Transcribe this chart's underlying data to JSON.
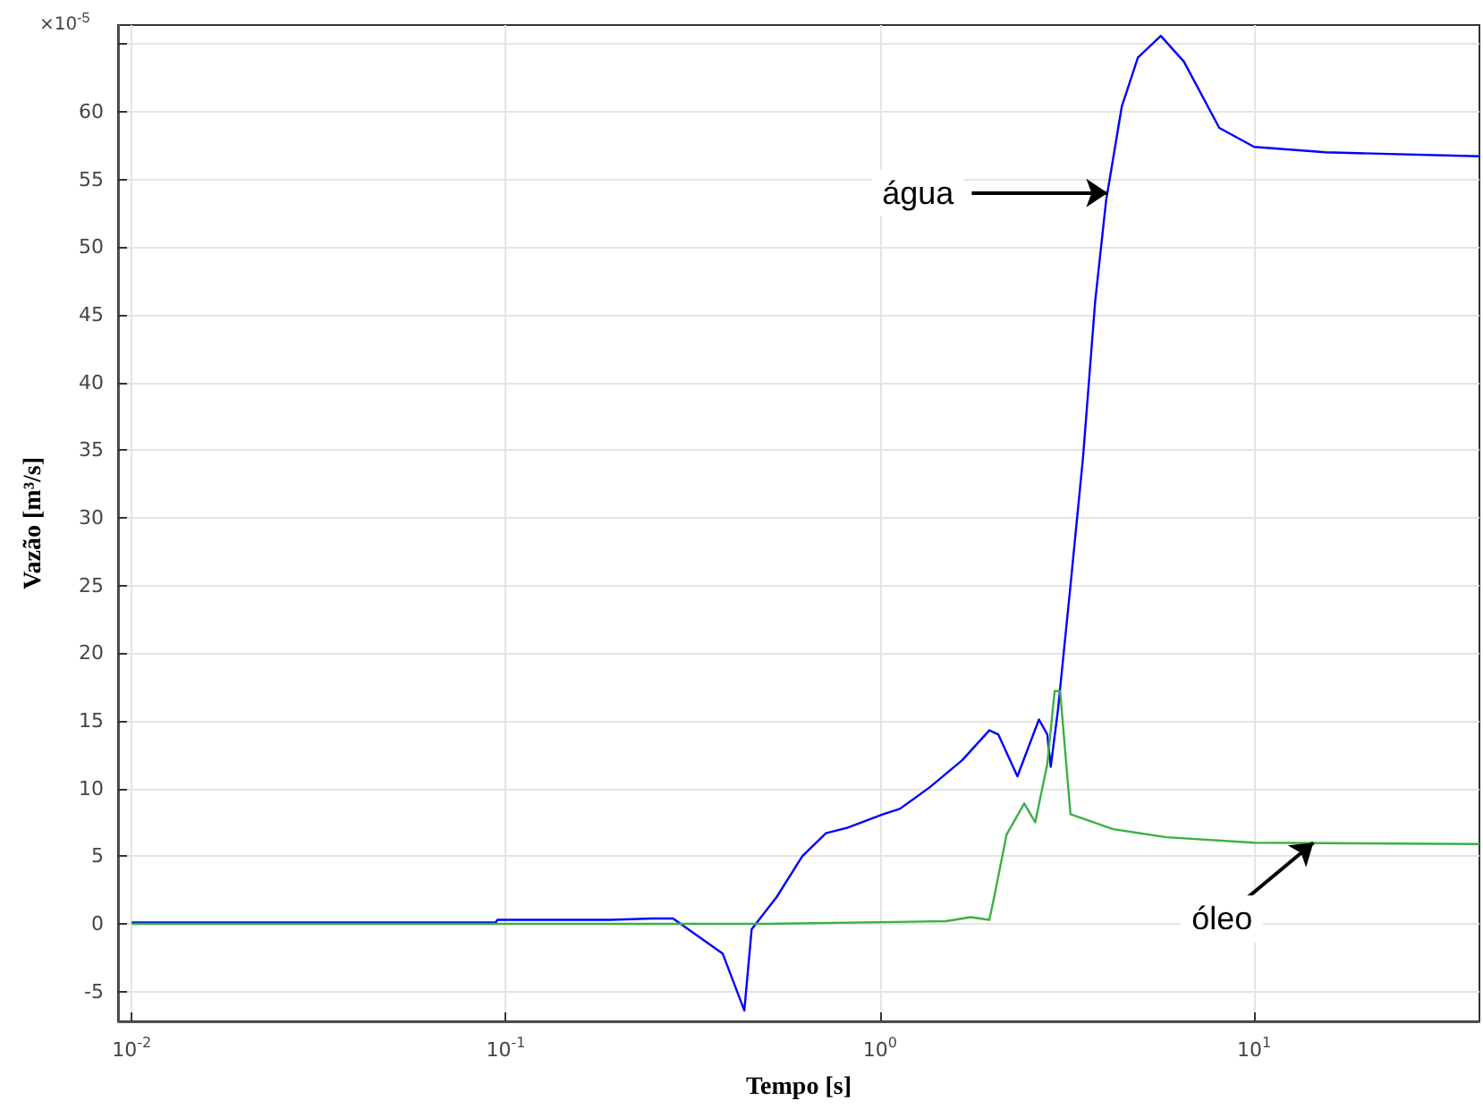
{
  "chart_data": {
    "type": "line",
    "xlabel": "Tempo [s]",
    "ylabel": "Vazão [m³/s]",
    "log": "x",
    "xlim": [
      0.0092,
      40
    ],
    "xticks": [
      {
        "value": 0.01,
        "label": "10$^{-2}$"
      },
      {
        "value": 0.1,
        "label": "10$^{-1}$"
      },
      {
        "value": 1,
        "label": "10$^{0}$"
      },
      {
        "value": 10,
        "label": "10$^{1}$"
      }
    ],
    "ylim": [
      -7.2,
      66.4
    ],
    "yticks": [
      -5,
      0,
      5,
      10,
      15,
      20,
      25,
      30,
      35,
      40,
      45,
      50,
      55,
      60,
      {
        "value": 65,
        "label": null
      }
    ],
    "grid": true,
    "marker": "none",
    "line_style": "solid",
    "series": [
      {
        "color": "#0000ff",
        "x": [
          0.01,
          0.094,
          0.095,
          0.19,
          0.246,
          0.28,
          0.38,
          0.434,
          0.454,
          0.53,
          0.62,
          0.717,
          0.817,
          1.02,
          1.13,
          1.36,
          1.66,
          1.96,
          2.07,
          2.33,
          2.66,
          2.8,
          2.86,
          2.99,
          3.23,
          3.49,
          3.76,
          4.02,
          4.43,
          4.89,
          5.63,
          6.49,
          8.07,
          10,
          15.5,
          40
        ],
        "values": [
          0.1,
          0.1,
          0.3,
          0.3,
          0.4,
          0.4,
          -2.2,
          -6.4,
          -0.4,
          2,
          5,
          6.7,
          7.1,
          8.1,
          8.5,
          10.1,
          12.1,
          14.3,
          14,
          10.9,
          15.1,
          14,
          11.6,
          15.8,
          25,
          34.5,
          46,
          53.4,
          60.4,
          64,
          65.6,
          63.7,
          58.8,
          57.4,
          57,
          56.7
        ]
      },
      {
        "color": "#3cb043",
        "x": [
          0.01,
          0.5,
          1.5,
          1.75,
          1.96,
          2.02,
          2.18,
          2.43,
          2.6,
          2.8,
          2.93,
          3.03,
          3.23,
          4.2,
          5.83,
          10,
          40
        ],
        "values": [
          0,
          0,
          0.2,
          0.5,
          0.3,
          2,
          6.6,
          8.9,
          7.5,
          11.8,
          17.2,
          17.2,
          8.1,
          7,
          6.4,
          6,
          5.9
        ]
      }
    ],
    "annotations": [
      "×10$^{-5}$",
      {
        "text": "água",
        "x": 4.06,
        "y": 54
      },
      {
        "text": "óleo",
        "x": 14.4,
        "y": 6
      }
    ]
  }
}
